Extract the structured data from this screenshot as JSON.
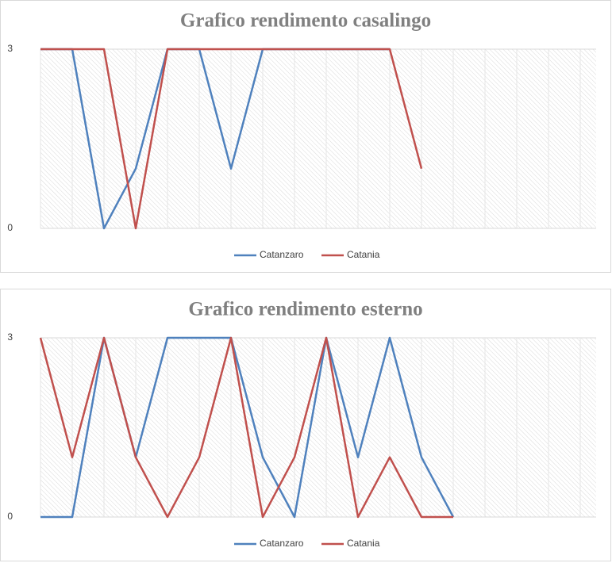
{
  "chart_data": [
    {
      "type": "line",
      "title": "Grafico rendimento casalingo",
      "categories": [
        null,
        null,
        null,
        null,
        null,
        null,
        null,
        null,
        null,
        null,
        null,
        null,
        null,
        null,
        null,
        null,
        null,
        null
      ],
      "series": [
        {
          "name": "Catanzaro",
          "color": "#4f81bd",
          "values": [
            3,
            3,
            0,
            1,
            3,
            3,
            1,
            3,
            3,
            3,
            3,
            3,
            null,
            null,
            null,
            null,
            null,
            null
          ]
        },
        {
          "name": "Catania",
          "color": "#c0504d",
          "values": [
            3,
            3,
            3,
            0,
            3,
            3,
            3,
            3,
            3,
            3,
            3,
            3,
            1,
            null,
            null,
            null,
            null,
            null
          ]
        }
      ],
      "ylim": [
        0,
        3
      ],
      "yticks": [
        0,
        3
      ],
      "legend": "bottom"
    },
    {
      "type": "line",
      "title": "Grafico rendimento esterno",
      "categories": [
        null,
        null,
        null,
        null,
        null,
        null,
        null,
        null,
        null,
        null,
        null,
        null,
        null,
        null,
        null,
        null,
        null,
        null
      ],
      "series": [
        {
          "name": "Catanzaro",
          "color": "#4f81bd",
          "values": [
            0,
            0,
            3,
            1,
            3,
            3,
            3,
            1,
            0,
            3,
            1,
            3,
            1,
            0,
            null,
            null,
            null,
            null
          ]
        },
        {
          "name": "Catania",
          "color": "#c0504d",
          "values": [
            3,
            1,
            3,
            1,
            0,
            1,
            3,
            0,
            1,
            3,
            0,
            1,
            0,
            0,
            null,
            null,
            null,
            null
          ]
        }
      ],
      "ylim": [
        0,
        3
      ],
      "yticks": [
        0,
        3
      ],
      "legend": "bottom"
    }
  ]
}
